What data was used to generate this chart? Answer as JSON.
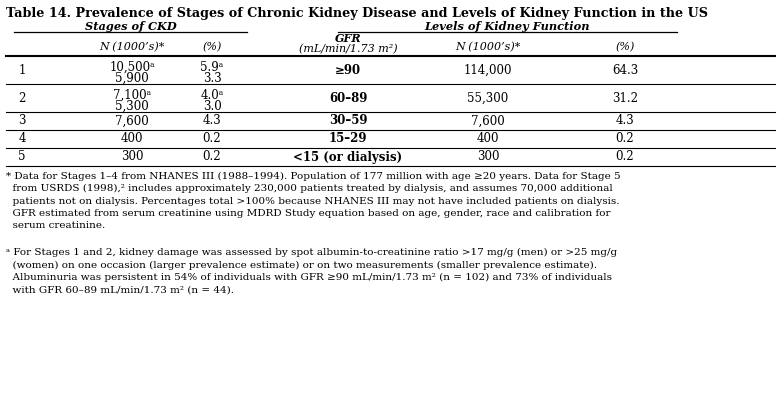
{
  "title": "Table 14. Prevalence of Stages of Chronic Kidney Disease and Levels of Kidney Function in the US",
  "col_headers": {
    "ckd_group": "Stages of CKD",
    "kf_group": "Levels of Kidney Function",
    "ckd_n": "N (1000’s)*",
    "ckd_pct": "(%)",
    "gfr_line1": "GFR",
    "gfr_line2": "(mL/min/1.73 m²)",
    "kf_n": "N (1000’s)*",
    "kf_pct": "(%)"
  },
  "rows": [
    {
      "stage": "1",
      "ckd_n1": "10,500ᵃ",
      "ckd_n2": "5,900",
      "ckd_pct1": "5.9ᵃ",
      "ckd_pct2": "3.3",
      "gfr": "≥90",
      "kf_n": "114,000",
      "kf_pct": "64.3",
      "two_line": true
    },
    {
      "stage": "2",
      "ckd_n1": "7,100ᵃ",
      "ckd_n2": "5,300",
      "ckd_pct1": "4.0ᵃ",
      "ckd_pct2": "3.0",
      "gfr": "60–89",
      "kf_n": "55,300",
      "kf_pct": "31.2",
      "two_line": true
    },
    {
      "stage": "3",
      "ckd_n1": "7,600",
      "ckd_n2": "",
      "ckd_pct1": "4.3",
      "ckd_pct2": "",
      "gfr": "30–59",
      "kf_n": "7,600",
      "kf_pct": "4.3",
      "two_line": false
    },
    {
      "stage": "4",
      "ckd_n1": "400",
      "ckd_n2": "",
      "ckd_pct1": "0.2",
      "ckd_pct2": "",
      "gfr": "15–29",
      "kf_n": "400",
      "kf_pct": "0.2",
      "two_line": false
    },
    {
      "stage": "5",
      "ckd_n1": "300",
      "ckd_n2": "",
      "ckd_pct1": "0.2",
      "ckd_pct2": "",
      "gfr": "<15 (or dialysis)",
      "kf_n": "300",
      "kf_pct": "0.2",
      "two_line": false
    }
  ],
  "footnote_star": "* Data for Stages 1–4 from NHANES III (1988–1994). Population of 177 million with age ≥20 years. Data for Stage 5\n  from USRDS (1998),² includes approximately 230,000 patients treated by dialysis, and assumes 70,000 additional\n  patients not on dialysis. Percentages total >100% because NHANES III may not have included patients on dialysis.\n  GFR estimated from serum creatinine using MDRD Study equation based on age, gender, race and calibration for\n  serum creatinine.",
  "footnote_a": "ᵃ For Stages 1 and 2, kidney damage was assessed by spot albumin-to-creatinine ratio >17 mg/g (men) or >25 mg/g\n  (women) on one occasion (larger prevalence estimate) or on two measurements (smaller prevalence estimate).\n  Albuminuria was persistent in 54% of individuals with GFR ≥90 mL/min/1.73 m² (n = 102) and 73% of individuals\n  with GFR 60–89 mL/min/1.73 m² (n = 44).",
  "bg_color": "#ffffff",
  "text_color": "#000000"
}
